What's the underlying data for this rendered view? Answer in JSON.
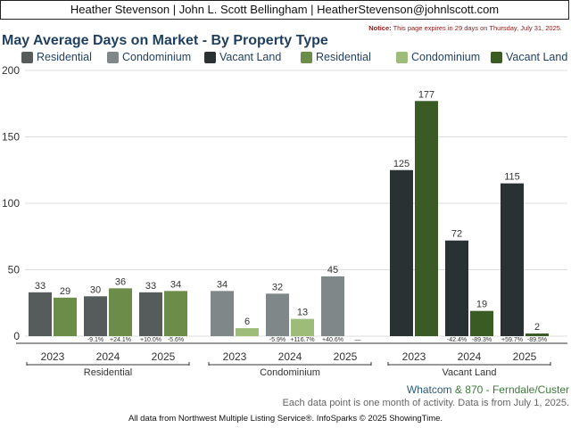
{
  "header": {
    "agent_line": "Heather Stevenson | John L. Scott Bellingham | HeatherStevenson@johnlscott.com"
  },
  "notice": {
    "label": "Notice:",
    "text": "This page expires in 29 days on Thursday, July 31, 2025."
  },
  "footer": {
    "location_area": "Whatcom",
    "location_amp": "&",
    "location_sub": "870 - Ferndale/Custer",
    "note": "Each data point is one month of activity. Data is from July 1, 2025.",
    "source": "All data from Northwest Multiple Listing Service®. InfoSparks © 2025 ShowingTime."
  },
  "chart_data": {
    "type": "bar",
    "title": "May Average Days on Market - By Property Type",
    "ylim": [
      0,
      200
    ],
    "yticks": [
      "0",
      "50",
      "100",
      "150",
      "200"
    ],
    "grid": true,
    "legend_position": "top",
    "legend": [
      {
        "name": "Residential",
        "color": "#565b5c"
      },
      {
        "name": "Condominium",
        "color": "#808789"
      },
      {
        "name": "Vacant Land",
        "color": "#2a3133"
      },
      {
        "name": "Residential",
        "color": "#6c8c4a"
      },
      {
        "name": "Condominium",
        "color": "#9dbb79"
      },
      {
        "name": "Vacant Land",
        "color": "#3b5b25"
      }
    ],
    "groups": [
      {
        "name": "Residential",
        "years": [
          {
            "year": "2023",
            "values": [
              33,
              29
            ],
            "labels": [
              "33",
              "29"
            ],
            "changes": []
          },
          {
            "year": "2024",
            "values": [
              30,
              36
            ],
            "labels": [
              "30",
              "36"
            ],
            "changes": [
              "-9.1%",
              "+24.1%"
            ]
          },
          {
            "year": "2025",
            "values": [
              33,
              34
            ],
            "labels": [
              "33",
              "34"
            ],
            "changes": [
              "+10.0%",
              "-5.6%"
            ]
          }
        ]
      },
      {
        "name": "Condominium",
        "years": [
          {
            "year": "2023",
            "values": [
              34,
              6
            ],
            "labels": [
              "34",
              "6"
            ],
            "changes": []
          },
          {
            "year": "2024",
            "values": [
              32,
              13
            ],
            "labels": [
              "32",
              "13"
            ],
            "changes": [
              "-5.9%",
              "+116.7%"
            ]
          },
          {
            "year": "2025",
            "values": [
              45,
              null
            ],
            "labels": [
              "45",
              ""
            ],
            "changes": [
              "+40.6%",
              "—"
            ]
          }
        ]
      },
      {
        "name": "Vacant Land",
        "years": [
          {
            "year": "2023",
            "values": [
              125,
              177
            ],
            "labels": [
              "125",
              "177"
            ],
            "changes": []
          },
          {
            "year": "2024",
            "values": [
              72,
              19
            ],
            "labels": [
              "72",
              "19"
            ],
            "changes": [
              "-42.4%",
              "-89.3%"
            ]
          },
          {
            "year": "2025",
            "values": [
              115,
              2
            ],
            "labels": [
              "115",
              "2"
            ],
            "changes": [
              "+59.7%",
              "-89.5%"
            ]
          }
        ]
      }
    ]
  }
}
